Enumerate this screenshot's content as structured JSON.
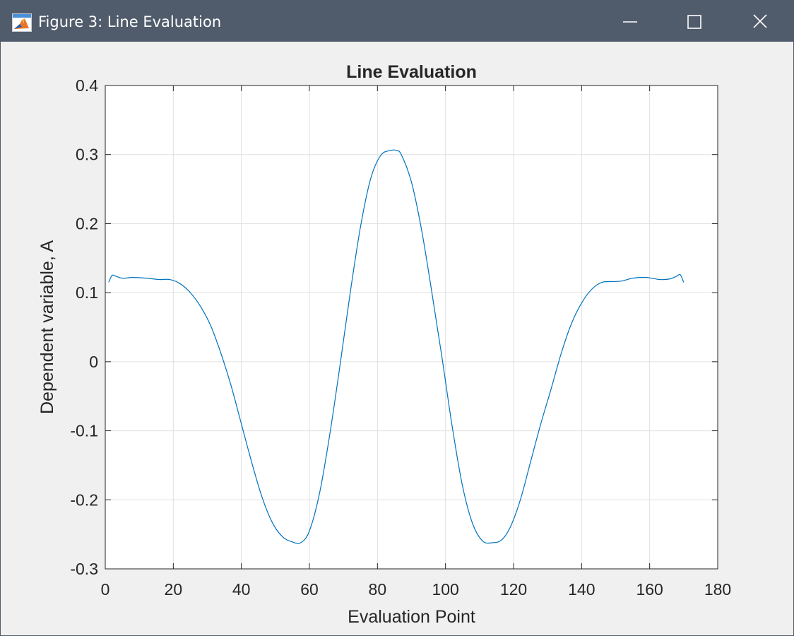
{
  "window": {
    "title": "Figure 3: Line Evaluation",
    "icon": "matlab-figure-icon",
    "controls": [
      "minimize-icon",
      "maximize-icon",
      "close-icon"
    ]
  },
  "colors": {
    "titlebar": "#505c6b",
    "figure_background": "#f0f0f0",
    "axes_background": "#ffffff",
    "line": "#0072bd",
    "grid": "#e0e0e0",
    "axis": "#262626"
  },
  "chart_data": {
    "type": "line",
    "title": "Line Evaluation",
    "xlabel": "Evaluation Point",
    "ylabel": "Dependent variable, A",
    "xlim": [
      0,
      180
    ],
    "ylim": [
      -0.3,
      0.4
    ],
    "xticks": [
      0,
      20,
      40,
      60,
      80,
      100,
      120,
      140,
      160,
      180
    ],
    "xtick_labels": [
      "0",
      "20",
      "40",
      "60",
      "80",
      "100",
      "120",
      "140",
      "160",
      "180"
    ],
    "yticks": [
      -0.3,
      -0.2,
      -0.1,
      0,
      0.1,
      0.2,
      0.3,
      0.4
    ],
    "ytick_labels": [
      "-0.3",
      "-0.2",
      "-0.1",
      "0",
      "0.1",
      "0.2",
      "0.3",
      "0.4"
    ],
    "grid": true,
    "series": [
      {
        "color": "#0072bd",
        "x": [
          1,
          2,
          3,
          5,
          8,
          12,
          16,
          19,
          22,
          25,
          28,
          31,
          34,
          37,
          40,
          43,
          46,
          49,
          52,
          55,
          57.5,
          60,
          63,
          66,
          69,
          72,
          75,
          78,
          81,
          84,
          85.5,
          87,
          90,
          93,
          96,
          99,
          102,
          105,
          108,
          111,
          114,
          116.5,
          119,
          122,
          125,
          128,
          131,
          134,
          137,
          140,
          143,
          146,
          149,
          152,
          155,
          159,
          163,
          166,
          168,
          169,
          170
        ],
        "y": [
          0.115,
          0.125,
          0.124,
          0.121,
          0.122,
          0.121,
          0.119,
          0.119,
          0.113,
          0.1,
          0.08,
          0.052,
          0.012,
          -0.035,
          -0.09,
          -0.145,
          -0.195,
          -0.232,
          -0.253,
          -0.261,
          -0.262,
          -0.245,
          -0.19,
          -0.105,
          -0.005,
          0.1,
          0.195,
          0.265,
          0.299,
          0.306,
          0.306,
          0.3,
          0.26,
          0.19,
          0.1,
          0.005,
          -0.095,
          -0.18,
          -0.235,
          -0.26,
          -0.262,
          -0.258,
          -0.24,
          -0.2,
          -0.145,
          -0.09,
          -0.04,
          0.012,
          0.055,
          0.085,
          0.105,
          0.115,
          0.116,
          0.117,
          0.121,
          0.122,
          0.119,
          0.12,
          0.124,
          0.126,
          0.115
        ]
      }
    ]
  }
}
